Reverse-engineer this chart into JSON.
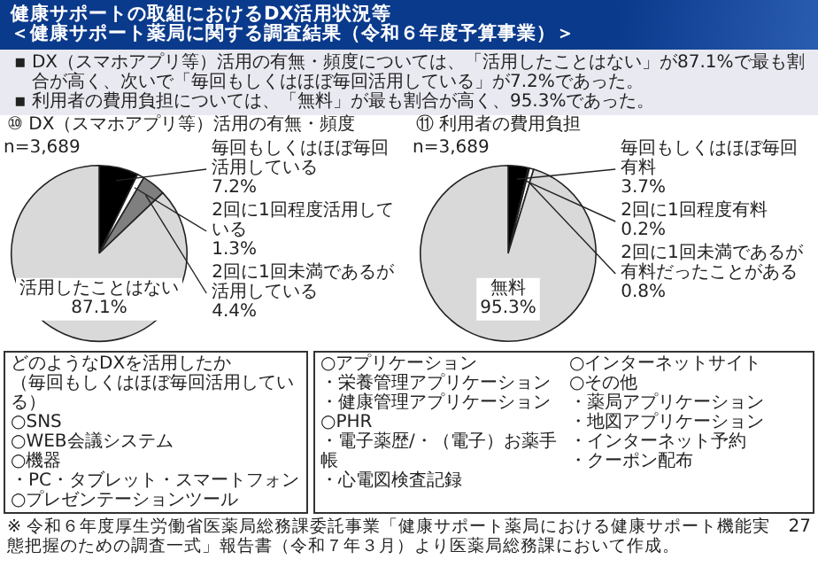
{
  "chart_data": [
    {
      "type": "pie",
      "title": "⑩ DX（スマホアプリ等）活用の有無・頻度",
      "categories": [
        "毎回もしくはほぼ毎回活用している",
        "2回に1回程度活用している",
        "2回に1回未満であるが活用している",
        "活用したことはない"
      ],
      "values": [
        7.2,
        1.3,
        4.4,
        87.1
      ],
      "colors": [
        "#000000",
        "#ffffff",
        "#7f7f7f",
        "#d9d9d9"
      ],
      "value_labels": [
        "7.2%",
        "1.3%",
        "4.4%",
        "87.1%"
      ],
      "annotations": [
        "健康サポートの取組におけるDX活用状況等",
        "＜健康サポート薬局に関する調査結果（令和６年度予算事業）＞",
        "▪ DX（スマホアプリ等）活用の有無・頻度については、「活用したことはない」が87.1%で最も割合が高く、次いで「毎回もしくはほぼ毎回活用している」が7.2%であった。",
        "▪ 利用者の費用負担については、「無料」が最も割合が高く、95.3%であった。",
        "n=3,689",
        "どのようなDXを活用したか",
        "（毎回もしくはほぼ毎回活用している）",
        "○SNS",
        "○WEB会議システム",
        "○機器",
        "・PC・タブレット・スマートフォン",
        "○プレゼンテーションツール"
      ]
    },
    {
      "type": "pie",
      "title": "⑪ 利用者の費用負担",
      "categories": [
        "毎回もしくはほぼ毎回有料",
        "2回に1回程度有料",
        "2回に1回未満であるが有料だったことがある",
        "無料"
      ],
      "values": [
        3.7,
        0.2,
        0.8,
        95.3
      ],
      "colors": [
        "#000000",
        "#ffffff",
        "#ffffff",
        "#d9d9d9"
      ],
      "value_labels": [
        "3.7%",
        "0.2%",
        "0.8%",
        "95.3%"
      ],
      "annotations": [
        "n=3,689",
        "※ 令和６年度厚生労働省医薬局総務課委託事業「健康サポート薬局における健康サポート機能実態把握のための調査一式」報告書（令和７年３月）より医薬局総務課において作成。",
        "27",
        "○アプリケーション",
        "・栄養管理アプリケーション",
        "・健康管理アプリケーション",
        "○PHR",
        "・電子薬歴/・（電子）お薬手帳",
        "・心電図検査記録",
        "○インターネットサイト",
        "○その他",
        "・薬局アプリケーション",
        "・地図アプリケーション",
        "・インターネット予約",
        "・クーポン配布"
      ]
    }
  ]
}
